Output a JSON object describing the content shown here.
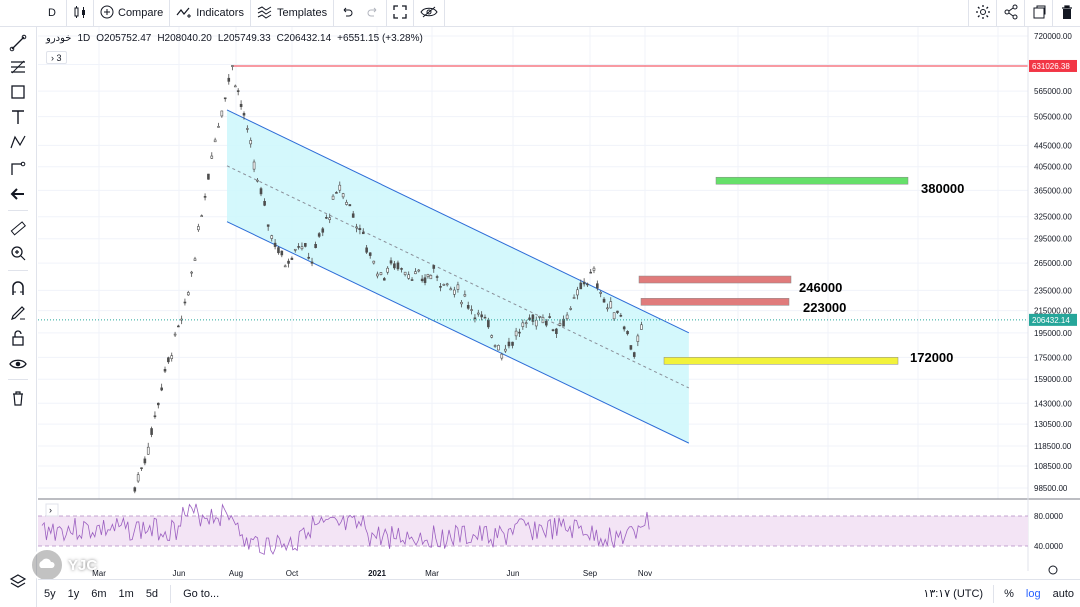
{
  "toolbar": {
    "symbol_short": "D",
    "compare": "Compare",
    "indicators": "Indicators",
    "templates": "Templates"
  },
  "legend": {
    "symbol": "خودرو",
    "interval": "1D",
    "open": "O205752.47",
    "high": "H208040.20",
    "low": "L205749.33",
    "close": "C206432.14",
    "change": "+6551.15 (+3.28%)",
    "collapse": "3"
  },
  "price_axis": {
    "ticks": [
      "720000.00",
      "635000.00",
      "565000.00",
      "505000.00",
      "445000.00",
      "405000.00",
      "365000.00",
      "325000.00",
      "295000.00",
      "265000.00",
      "235000.00",
      "215000.00",
      "195000.00",
      "175000.00",
      "159000.00",
      "143000.00",
      "130500.00",
      "118500.00",
      "108500.00",
      "98500.00"
    ],
    "high_label": "631026.38",
    "last_label": "206432.14"
  },
  "rsi_axis": {
    "ticks": [
      "80.0000",
      "40.0000"
    ]
  },
  "time_axis": {
    "ticks": [
      "Mar",
      "Jun",
      "Aug",
      "Oct",
      "2021",
      "Mar",
      "Jun",
      "Sep",
      "Nov"
    ]
  },
  "annotations": [
    "380000",
    "246000",
    "223000",
    "172000"
  ],
  "bottom": {
    "ranges": [
      "5y",
      "1y",
      "6m",
      "1m",
      "5d"
    ],
    "goto": "Go to...",
    "time": "۱۳:۱۷ (UTC)",
    "percent": "%",
    "log": "log",
    "auto": "auto"
  },
  "watermark": "YJC",
  "colors": {
    "channel_fill": "#ccf7fb",
    "channel_line": "#2d6cd7",
    "candle": "#4d4d4d",
    "up": "#26a69a",
    "down": "#ef5350",
    "target_green": "#66e06a",
    "resist_red": "#e07b7b",
    "support_yellow": "#f2f23b",
    "rsi_band": "#f3e4f5",
    "rsi_line": "#9b5fc0",
    "accent": "#2962ff"
  },
  "chart_data": {
    "type": "candlestick",
    "scale": "log",
    "price_path": [
      [
        "2020-04-10",
        98500
      ],
      [
        "2020-04-25",
        118000
      ],
      [
        "2020-05-10",
        155000
      ],
      [
        "2020-05-25",
        190000
      ],
      [
        "2020-06-05",
        215000
      ],
      [
        "2020-06-20",
        300000
      ],
      [
        "2020-07-05",
        430000
      ],
      [
        "2020-07-20",
        560000
      ],
      [
        "2020-07-28",
        631026
      ],
      [
        "2020-08-10",
        505000
      ],
      [
        "2020-08-25",
        380000
      ],
      [
        "2020-09-10",
        300000
      ],
      [
        "2020-09-25",
        265000
      ],
      [
        "2020-10-10",
        290000
      ],
      [
        "2020-10-25",
        270000
      ],
      [
        "2020-11-10",
        320000
      ],
      [
        "2020-11-25",
        370000
      ],
      [
        "2020-12-10",
        330000
      ],
      [
        "2020-12-25",
        285000
      ],
      [
        "2021-01-10",
        250000
      ],
      [
        "2021-01-25",
        265000
      ],
      [
        "2021-02-10",
        255000
      ],
      [
        "2021-02-25",
        245000
      ],
      [
        "2021-03-10",
        255000
      ],
      [
        "2021-03-25",
        240000
      ],
      [
        "2021-04-10",
        230000
      ],
      [
        "2021-04-25",
        215000
      ],
      [
        "2021-05-10",
        200000
      ],
      [
        "2021-05-25",
        180000
      ],
      [
        "2021-06-10",
        193000
      ],
      [
        "2021-06-25",
        205000
      ],
      [
        "2021-07-10",
        210000
      ],
      [
        "2021-07-25",
        200000
      ],
      [
        "2021-08-10",
        215000
      ],
      [
        "2021-08-25",
        245000
      ],
      [
        "2021-09-05",
        252000
      ],
      [
        "2021-09-20",
        218000
      ],
      [
        "2021-10-05",
        212000
      ],
      [
        "2021-10-20",
        178000
      ],
      [
        "2021-11-01",
        206432
      ]
    ],
    "levels": [
      380000,
      246000,
      223000,
      172000
    ],
    "rsi_levels": [
      80,
      40
    ]
  }
}
